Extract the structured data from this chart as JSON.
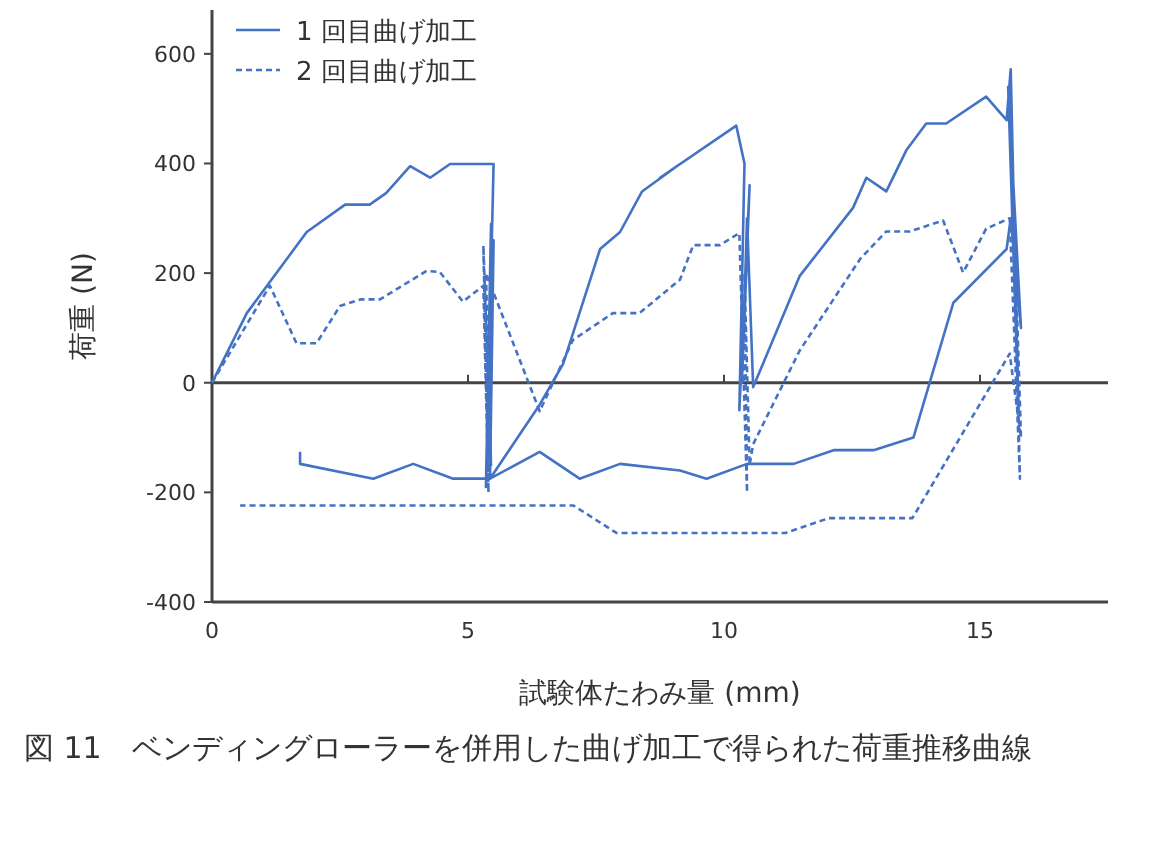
{
  "chart_data": {
    "type": "line",
    "xlabel": "試験体たわみ量 (mm)",
    "ylabel": "荷重 (N)",
    "annotations": [
      "図 11　ベンディングローラーを併用した曲げ加工で得られた荷重推移曲線"
    ],
    "xlim": [
      0,
      17.5
    ],
    "ylim": [
      -400,
      680
    ],
    "xticks": [
      0,
      5,
      10,
      15
    ],
    "yticks": [
      -400,
      -200,
      0,
      200,
      400,
      600
    ],
    "grid": false,
    "legend": "top left",
    "marker": "none",
    "ref_lines": [
      {
        "axis": "y",
        "value": 0
      }
    ],
    "series": [
      {
        "name": "1 回目曲げ加工",
        "color": "#4472c4",
        "line_style": "solid",
        "x": [
          0,
          0.68,
          1.85,
          2.6,
          3.08,
          3.4,
          3.87,
          4.26,
          4.65,
          5.5,
          5.35,
          5.45,
          5.38,
          5.5,
          5.43,
          6.4,
          6.86,
          7.58,
          7.97,
          8.4,
          9.14,
          8.75,
          10.24,
          10.4,
          10.3,
          10.5,
          10.35,
          10.45,
          10.57,
          11.48,
          12.52,
          12.78,
          13.17,
          13.56,
          13.95,
          14.34,
          15.12,
          15.52,
          15.6,
          15.75,
          15.55,
          15.8,
          15.6,
          15.52,
          14.48,
          13.7,
          12.92,
          12.14,
          11.36,
          10.45,
          9.66,
          9.14,
          7.97,
          7.18,
          6.4,
          5.43,
          4.71,
          3.93,
          3.15,
          1.72,
          1.72
        ],
        "values": [
          0,
          127,
          275,
          325,
          325,
          346,
          395,
          374,
          399,
          399,
          -190,
          290,
          -150,
          260,
          -175,
          -40,
          35,
          244,
          275,
          349,
          399,
          374,
          469,
          400,
          -50,
          360,
          0,
          300,
          -8,
          195,
          319,
          374,
          349,
          424,
          473,
          473,
          522,
          479,
          572,
          -50,
          540,
          100,
          300,
          244,
          146,
          -100,
          -123,
          -123,
          -148,
          -148,
          -175,
          -160,
          -148,
          -175,
          -126,
          -175,
          -175,
          -148,
          -175,
          -148,
          -126
        ]
      },
      {
        "name": "2 回目曲げ加工",
        "color": "#4472c4",
        "line_style": "dashed",
        "x": [
          0,
          1.13,
          1.65,
          2.04,
          2.5,
          2.9,
          3.28,
          4.19,
          4.45,
          4.9,
          5.3,
          5.4,
          5.3,
          5.45,
          5.35,
          6.4,
          7.05,
          7.83,
          8.35,
          9.14,
          9.4,
          9.92,
          10.3,
          10.45,
          10.4,
          10.5,
          10.57,
          11.48,
          12.66,
          13.17,
          13.63,
          14.28,
          14.67,
          15.12,
          15.58,
          15.78,
          15.65,
          15.8,
          15.58,
          13.68,
          12.05,
          11.2,
          7.9,
          7.06,
          0.55
        ],
        "values": [
          0,
          177,
          72,
          72,
          140,
          152,
          152,
          204,
          202,
          148,
          177,
          -200,
          250,
          -150,
          200,
          -52,
          78,
          127,
          127,
          188,
          251,
          251,
          273,
          -200,
          200,
          -150,
          -112,
          59,
          226,
          276,
          276,
          296,
          201,
          281,
          300,
          -175,
          350,
          -100,
          53,
          -247,
          -247,
          -274,
          -274,
          -224,
          -224
        ]
      }
    ]
  }
}
